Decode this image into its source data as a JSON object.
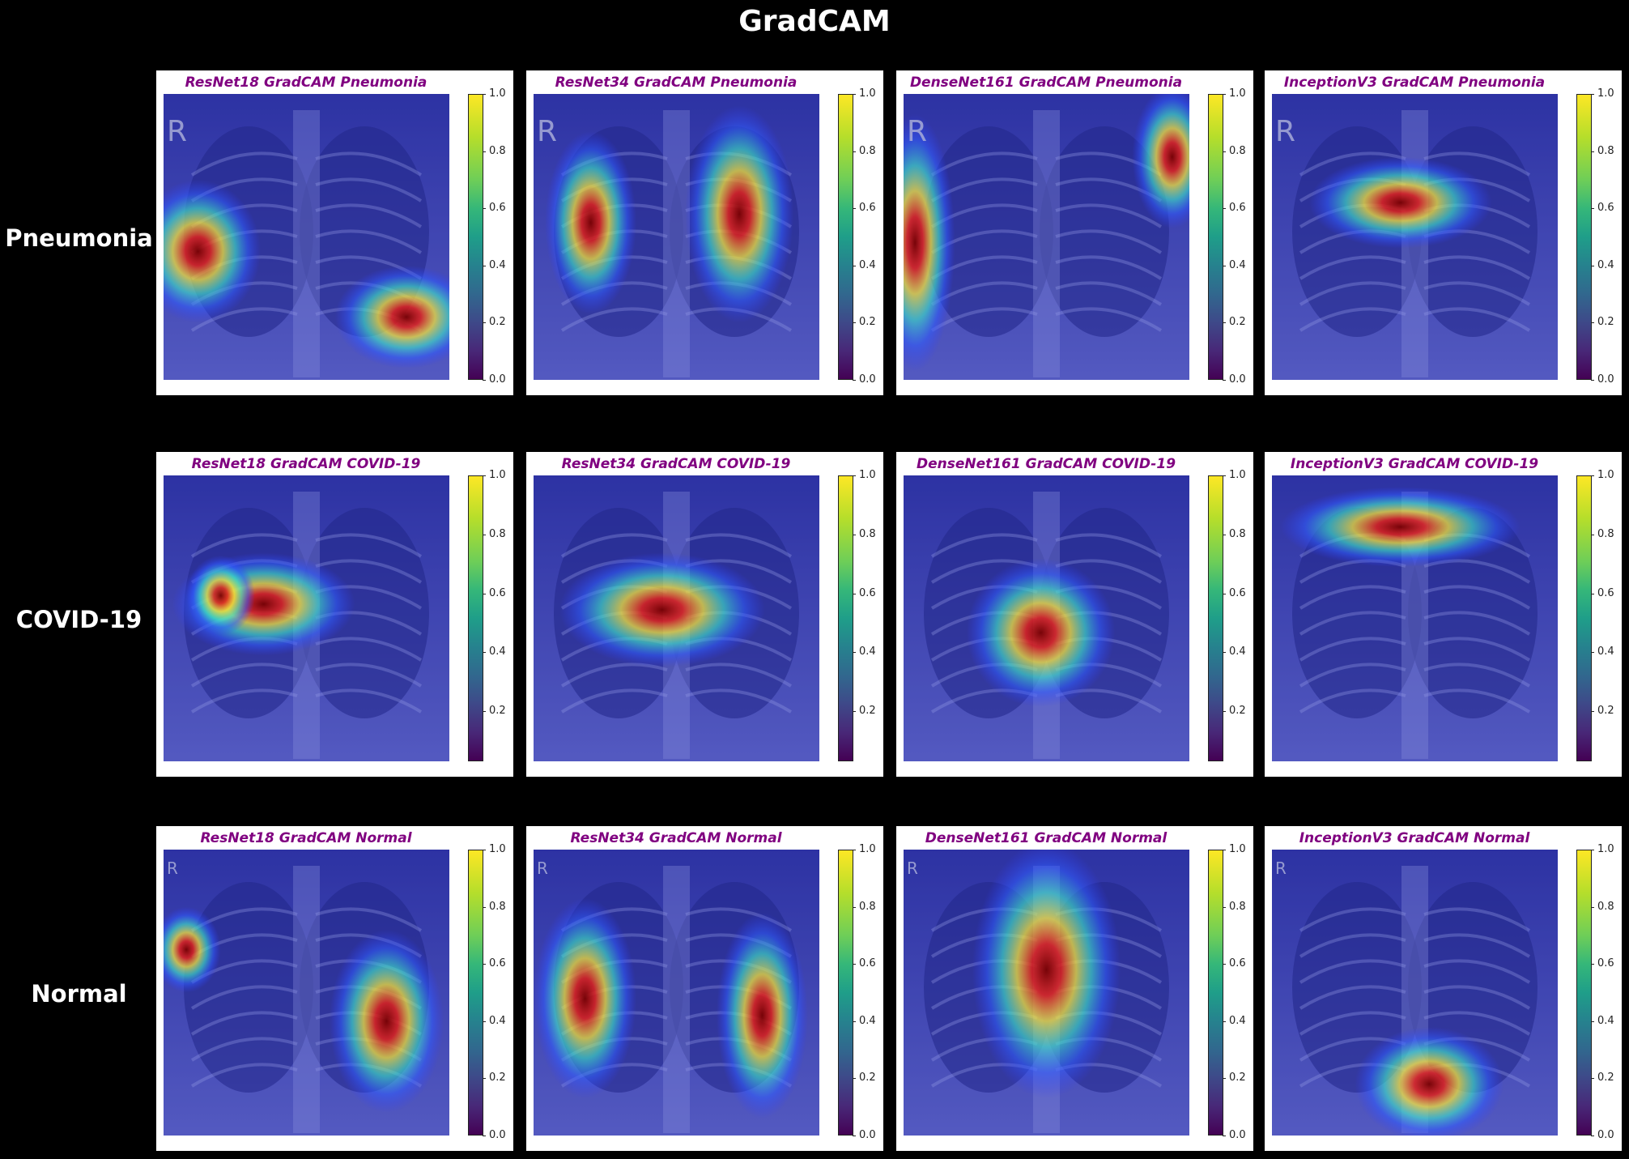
{
  "title": "GradCAM",
  "rows": [
    {
      "label": "Pneumonia",
      "panels": [
        {
          "title": "ResNet18 GradCAM Pneumonia",
          "ticks": [
            "1.0",
            "0.8",
            "0.6",
            "0.4",
            "0.2",
            "0.0"
          ],
          "chest_marker": "R"
        },
        {
          "title": "ResNet34 GradCAM Pneumonia",
          "ticks": [
            "1.0",
            "0.8",
            "0.6",
            "0.4",
            "0.2",
            "0.0"
          ],
          "chest_marker": "R"
        },
        {
          "title": "DenseNet161 GradCAM Pneumonia",
          "ticks": [
            "1.0",
            "0.8",
            "0.6",
            "0.4",
            "0.2",
            "0.0"
          ],
          "chest_marker": "R"
        },
        {
          "title": "InceptionV3 GradCAM Pneumonia",
          "ticks": [
            "1.0",
            "0.8",
            "0.6",
            "0.4",
            "0.2",
            "0.0"
          ],
          "chest_marker": "R"
        }
      ]
    },
    {
      "label": "COVID-19",
      "panels": [
        {
          "title": "ResNet18 GradCAM COVID-19",
          "ticks": [
            "1.0",
            "0.8",
            "0.6",
            "0.4",
            "0.2"
          ],
          "chest_marker": ""
        },
        {
          "title": "ResNet34 GradCAM COVID-19",
          "ticks": [
            "1.0",
            "0.8",
            "0.6",
            "0.4",
            "0.2"
          ],
          "chest_marker": ""
        },
        {
          "title": "DenseNet161 GradCAM COVID-19",
          "ticks": [
            "1.0",
            "0.8",
            "0.6",
            "0.4",
            "0.2"
          ],
          "chest_marker": ""
        },
        {
          "title": "InceptionV3 GradCAM COVID-19",
          "ticks": [
            "1.0",
            "0.8",
            "0.6",
            "0.4",
            "0.2"
          ],
          "chest_marker": ""
        }
      ]
    },
    {
      "label": "Normal",
      "panels": [
        {
          "title": "ResNet18 GradCAM Normal",
          "ticks": [
            "1.0",
            "0.8",
            "0.6",
            "0.4",
            "0.2",
            "0.0"
          ],
          "chest_marker": "R"
        },
        {
          "title": "ResNet34 GradCAM Normal",
          "ticks": [
            "1.0",
            "0.8",
            "0.6",
            "0.4",
            "0.2",
            "0.0"
          ],
          "chest_marker": "R"
        },
        {
          "title": "DenseNet161 GradCAM Normal",
          "ticks": [
            "1.0",
            "0.8",
            "0.6",
            "0.4",
            "0.2",
            "0.0"
          ],
          "chest_marker": "R"
        },
        {
          "title": "InceptionV3 GradCAM Normal",
          "ticks": [
            "1.0",
            "0.8",
            "0.6",
            "0.4",
            "0.2",
            "0.0"
          ],
          "chest_marker": "R"
        }
      ]
    }
  ],
  "colors": {
    "background": "#000000",
    "panel_title": "#800080",
    "colormap": "viridis",
    "heatmap": "jet"
  }
}
